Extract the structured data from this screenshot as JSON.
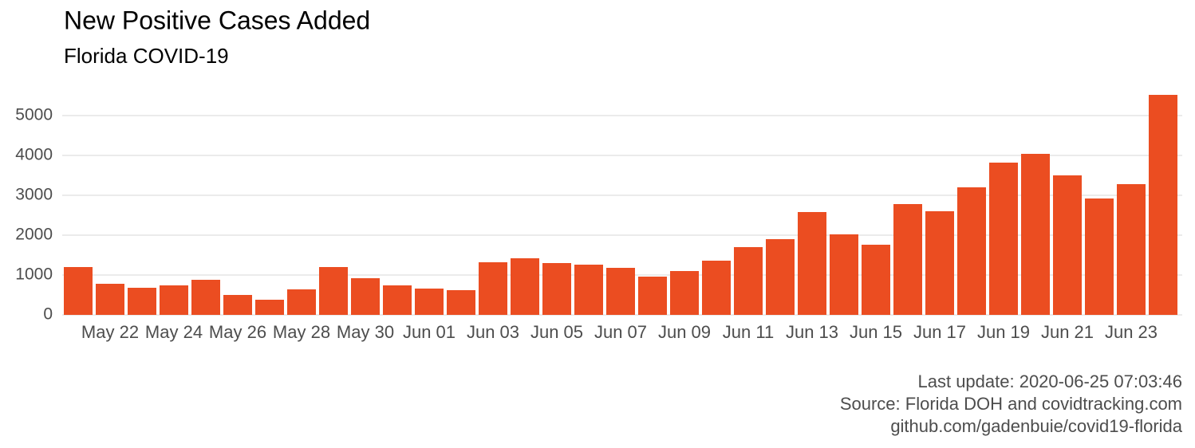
{
  "chart_data": {
    "type": "bar",
    "title": "New Positive Cases Added",
    "subtitle": "Florida COVID-19",
    "categories": [
      null,
      "May 22",
      null,
      "May 24",
      null,
      "May 26",
      null,
      "May 28",
      null,
      "May 30",
      null,
      "Jun 01",
      null,
      "Jun 03",
      null,
      "Jun 05",
      null,
      "Jun 07",
      null,
      "Jun 09",
      null,
      "Jun 11",
      null,
      "Jun 13",
      null,
      "Jun 15",
      null,
      "Jun 17",
      null,
      "Jun 19",
      null,
      "Jun 21",
      null,
      "Jun 23",
      null
    ],
    "values": [
      1200,
      780,
      680,
      740,
      880,
      500,
      380,
      640,
      1200,
      920,
      740,
      660,
      620,
      1320,
      1420,
      1300,
      1260,
      1180,
      960,
      1100,
      1360,
      1700,
      1900,
      2580,
      2020,
      1760,
      2780,
      2600,
      3200,
      3820,
      4040,
      3500,
      2920,
      3280,
      5520
    ],
    "color": "#eb4d21",
    "ylim": [
      0,
      5600
    ],
    "yticks": [
      0,
      1000,
      2000,
      3000,
      4000,
      5000
    ],
    "grid": true,
    "captions": [
      "Last update: 2020-06-25 07:03:46",
      "Source: Florida DOH and covidtracking.com",
      "github.com/gadenbuie/covid19-florida"
    ]
  }
}
